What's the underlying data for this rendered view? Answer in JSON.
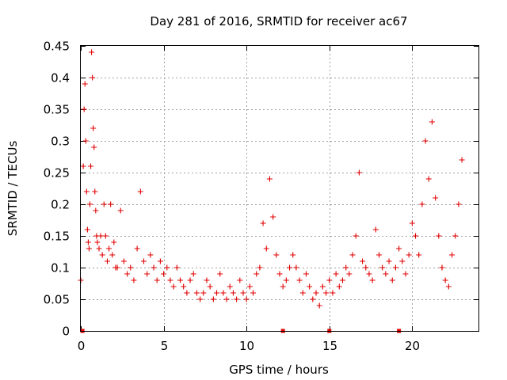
{
  "chart_data": {
    "type": "scatter",
    "title": "Day 281 of 2016, SRMTID for receiver ac67",
    "xlabel": "GPS time / hours",
    "ylabel": "SRMTID / TECUs",
    "xlim": [
      0,
      24
    ],
    "ylim": [
      0,
      0.45
    ],
    "xticks": [
      0,
      5,
      10,
      15,
      20
    ],
    "yticks": [
      0,
      0.05,
      0.1,
      0.15,
      0.2,
      0.25,
      0.3,
      0.35,
      0.4,
      0.45
    ],
    "grid": true,
    "marker": "+",
    "color": "#e00000",
    "series": [
      {
        "name": "SRMTID",
        "x": [
          0.0,
          0.15,
          0.2,
          0.25,
          0.3,
          0.35,
          0.4,
          0.45,
          0.5,
          0.55,
          0.6,
          0.65,
          0.7,
          0.75,
          0.8,
          0.85,
          0.9,
          0.95,
          1.0,
          1.1,
          1.2,
          1.3,
          1.4,
          1.5,
          1.6,
          1.7,
          1.8,
          1.9,
          2.0,
          2.1,
          2.2,
          2.4,
          2.6,
          2.8,
          3.0,
          3.2,
          3.4,
          3.6,
          3.8,
          4.0,
          4.2,
          4.4,
          4.6,
          4.8,
          5.0,
          5.2,
          5.4,
          5.6,
          5.8,
          6.0,
          6.2,
          6.4,
          6.6,
          6.8,
          7.0,
          7.2,
          7.4,
          7.6,
          7.8,
          8.0,
          8.2,
          8.4,
          8.6,
          8.8,
          9.0,
          9.2,
          9.4,
          9.6,
          9.8,
          10.0,
          10.2,
          10.4,
          10.6,
          10.8,
          11.0,
          11.2,
          11.4,
          11.6,
          11.8,
          12.0,
          12.2,
          12.4,
          12.6,
          12.8,
          13.0,
          13.2,
          13.4,
          13.6,
          13.8,
          14.0,
          14.2,
          14.4,
          14.6,
          14.8,
          15.0,
          15.2,
          15.4,
          15.6,
          15.8,
          16.0,
          16.2,
          16.4,
          16.6,
          16.8,
          17.0,
          17.2,
          17.4,
          17.6,
          17.8,
          18.0,
          18.2,
          18.4,
          18.6,
          18.8,
          19.0,
          19.2,
          19.4,
          19.6,
          19.8,
          20.0,
          20.2,
          20.4,
          20.6,
          20.8,
          21.0,
          21.2,
          21.4,
          21.6,
          21.8,
          22.0,
          22.2,
          22.4,
          22.6,
          22.8,
          23.0
        ],
        "y": [
          0.08,
          0.26,
          0.35,
          0.39,
          0.3,
          0.22,
          0.16,
          0.14,
          0.13,
          0.2,
          0.26,
          0.44,
          0.4,
          0.32,
          0.29,
          0.22,
          0.19,
          0.15,
          0.14,
          0.13,
          0.15,
          0.12,
          0.2,
          0.15,
          0.11,
          0.13,
          0.2,
          0.12,
          0.14,
          0.1,
          0.1,
          0.19,
          0.11,
          0.09,
          0.1,
          0.08,
          0.13,
          0.22,
          0.11,
          0.09,
          0.12,
          0.1,
          0.08,
          0.11,
          0.09,
          0.1,
          0.08,
          0.07,
          0.1,
          0.08,
          0.07,
          0.06,
          0.08,
          0.09,
          0.06,
          0.05,
          0.06,
          0.08,
          0.07,
          0.05,
          0.06,
          0.09,
          0.06,
          0.05,
          0.07,
          0.06,
          0.05,
          0.08,
          0.06,
          0.05,
          0.07,
          0.06,
          0.09,
          0.1,
          0.17,
          0.13,
          0.24,
          0.18,
          0.12,
          0.09,
          0.07,
          0.08,
          0.1,
          0.12,
          0.1,
          0.08,
          0.06,
          0.09,
          0.07,
          0.05,
          0.06,
          0.04,
          0.07,
          0.06,
          0.08,
          0.06,
          0.09,
          0.07,
          0.08,
          0.1,
          0.09,
          0.12,
          0.15,
          0.25,
          0.11,
          0.1,
          0.09,
          0.08,
          0.16,
          0.12,
          0.1,
          0.09,
          0.11,
          0.08,
          0.1,
          0.13,
          0.11,
          0.09,
          0.12,
          0.17,
          0.15,
          0.12,
          0.2,
          0.3,
          0.24,
          0.33,
          0.21,
          0.15,
          0.1,
          0.08,
          0.07,
          0.12,
          0.15,
          0.2,
          0.27
        ]
      }
    ],
    "zero_markers_x": [
      0.1,
      12.2,
      15.0,
      19.2
    ]
  }
}
